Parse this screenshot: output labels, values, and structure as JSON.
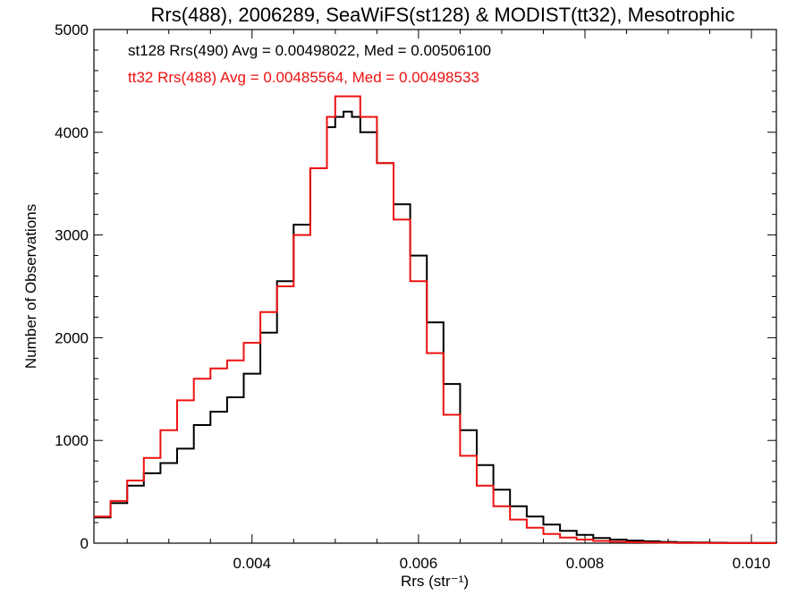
{
  "chart_data": {
    "type": "line",
    "title": "Rrs(488), 2006289, SeaWiFS(st128) & MODIST(tt32), Mesotrophic",
    "xlabel": "Rrs (str⁻¹)",
    "ylabel": "Number of Observations",
    "xlim": [
      0.0021,
      0.0103
    ],
    "ylim": [
      0,
      5000
    ],
    "x_ticks": [
      0.004,
      0.006,
      0.008,
      0.01
    ],
    "x_tick_labels": [
      "0.004",
      "0.006",
      "0.008",
      "0.010"
    ],
    "y_ticks": [
      0,
      1000,
      2000,
      3000,
      4000,
      5000
    ],
    "y_tick_labels": [
      "0",
      "1000",
      "2000",
      "3000",
      "4000",
      "5000"
    ],
    "grid": false,
    "legend_position": "top-left",
    "series": [
      {
        "name": "st128 Rrs(490) Avg = 0.00498022, Med = 0.00506100",
        "color": "#000000",
        "x": [
          0.0021,
          0.0023,
          0.0025,
          0.0027,
          0.0029,
          0.0031,
          0.0033,
          0.0035,
          0.0037,
          0.0039,
          0.0041,
          0.0043,
          0.0045,
          0.0047,
          0.0049,
          0.005,
          0.0051,
          0.0052,
          0.0053,
          0.0055,
          0.0057,
          0.0059,
          0.0061,
          0.0063,
          0.0065,
          0.0067,
          0.0069,
          0.0071,
          0.0073,
          0.0075,
          0.0077,
          0.0079,
          0.0081,
          0.0083,
          0.0085,
          0.0087,
          0.0089,
          0.0091,
          0.0093,
          0.0095,
          0.0097,
          0.0099,
          0.0101,
          0.0103
        ],
        "y": [
          250,
          390,
          560,
          680,
          780,
          920,
          1150,
          1280,
          1420,
          1650,
          2050,
          2550,
          3100,
          3650,
          4050,
          4150,
          4200,
          4150,
          4000,
          3700,
          3300,
          2800,
          2150,
          1550,
          1100,
          760,
          520,
          360,
          260,
          180,
          120,
          80,
          50,
          35,
          25,
          18,
          12,
          8,
          6,
          4,
          3,
          2,
          2,
          1
        ]
      },
      {
        "name": "tt32 Rrs(488) Avg = 0.00485564, Med = 0.00498533",
        "color": "#ee1111",
        "x": [
          0.0021,
          0.0023,
          0.0025,
          0.0027,
          0.0029,
          0.0031,
          0.0033,
          0.0035,
          0.0037,
          0.0039,
          0.0041,
          0.0043,
          0.0045,
          0.0047,
          0.0049,
          0.005,
          0.0051,
          0.0052,
          0.0053,
          0.0055,
          0.0057,
          0.0059,
          0.0061,
          0.0063,
          0.0065,
          0.0067,
          0.0069,
          0.0071,
          0.0073,
          0.0075,
          0.0077,
          0.0079,
          0.0081,
          0.0083,
          0.0085,
          0.0087,
          0.0089,
          0.0091,
          0.0093,
          0.0095,
          0.0097,
          0.0099,
          0.0101,
          0.0103
        ],
        "y": [
          260,
          410,
          610,
          830,
          1100,
          1390,
          1600,
          1700,
          1780,
          1950,
          2250,
          2500,
          3000,
          3650,
          4150,
          4350,
          4350,
          4350,
          4150,
          3700,
          3150,
          2550,
          1850,
          1250,
          850,
          560,
          360,
          230,
          150,
          90,
          55,
          35,
          22,
          14,
          9,
          6,
          4,
          3,
          2,
          1,
          1,
          1,
          0,
          0
        ]
      }
    ]
  }
}
